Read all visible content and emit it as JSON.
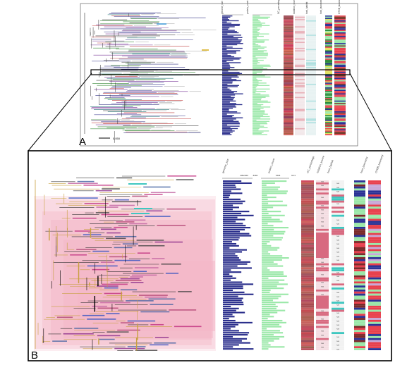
{
  "panels": [
    {
      "letter": "A"
    },
    {
      "letter": "B"
    }
  ],
  "panel_a": {
    "scale_label": "0.050",
    "columns": [
      "genome_size",
      "protein_count",
      "GC_percentage",
      "isolation_source",
      "host_habitat",
      "host_taxonomy",
      "GTDB_taxonomy"
    ]
  },
  "panel_b": {
    "columns": [
      "genome_size",
      "protein_count",
      "GC_percentage",
      "isolation_source",
      "host_habitat",
      "host_taxonomy",
      "GTDB_taxonomy"
    ],
    "axis": {
      "genome_size_left": "3052250",
      "genome_size_right": "8384",
      "protein_left": "7836",
      "protein_right": "60.3"
    },
    "na_label": "N/A",
    "colors": {
      "bar_blue": "#2b2f8c",
      "bar_green": "#9be8a9",
      "gc_red": "#b5535b",
      "pink_clade": "#f4b6c8",
      "teal": "#3fc7c0",
      "cat_green": "#9be8a9",
      "cat_red": "#e8404d",
      "cat_blue": "#2b3296"
    }
  }
}
